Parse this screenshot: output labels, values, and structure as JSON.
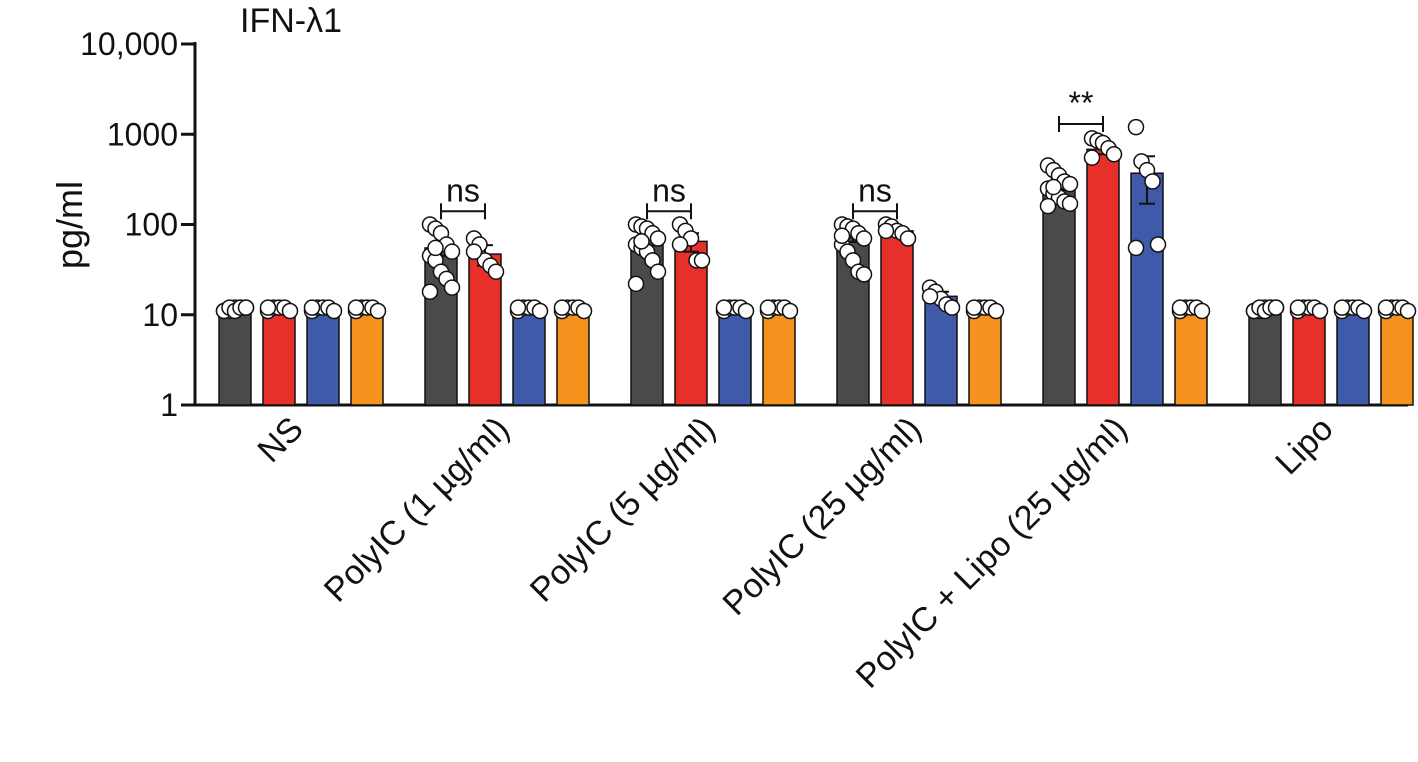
{
  "chart_data": {
    "type": "bar",
    "title": "IFN-λ1",
    "ylabel": "pg/ml",
    "xlabel": "",
    "yscale": "log",
    "ylim": [
      1,
      10000
    ],
    "yticks": [
      {
        "value": 1,
        "label": "1"
      },
      {
        "value": 10,
        "label": "10"
      },
      {
        "value": 100,
        "label": "100"
      },
      {
        "value": 1000,
        "label": "1000"
      },
      {
        "value": 10000,
        "label": "10,000"
      }
    ],
    "grid": false,
    "legend": "none",
    "categories": [
      "NS",
      "PolyIC (1 µg/ml)",
      "PolyIC (5 µg/ml)",
      "PolyIC (25 µg/ml)",
      "PolyIC + Lipo (25 µg/ml)",
      "Lipo"
    ],
    "series": [
      {
        "color": "#4a4a4a",
        "values": [
          12,
          55,
          68,
          72,
          280,
          12
        ],
        "error": [
          0,
          10,
          10,
          8,
          40,
          0
        ],
        "points": [
          [
            11,
            11,
            12,
            12,
            12,
            11,
            12,
            11,
            12,
            12
          ],
          [
            100,
            90,
            80,
            60,
            50,
            45,
            40,
            30,
            25,
            20,
            18,
            55
          ],
          [
            100,
            95,
            90,
            80,
            70,
            60,
            55,
            50,
            40,
            30,
            22,
            65
          ],
          [
            100,
            95,
            90,
            80,
            70,
            60,
            50,
            40,
            30,
            28,
            75
          ],
          [
            450,
            400,
            350,
            300,
            280,
            250,
            220,
            200,
            180,
            170,
            160,
            260
          ],
          [
            11,
            11,
            12,
            12,
            12,
            11,
            12,
            11,
            12,
            12
          ]
        ]
      },
      {
        "color": "#e8302a",
        "values": [
          12,
          47,
          65,
          85,
          680,
          12
        ],
        "error": [
          0,
          12,
          15,
          10,
          80,
          0
        ],
        "points": [
          [
            11,
            12,
            12,
            12,
            11,
            12
          ],
          [
            70,
            60,
            40,
            35,
            30,
            50
          ],
          [
            100,
            85,
            70,
            40,
            40,
            60
          ],
          [
            100,
            95,
            85,
            80,
            70,
            85
          ],
          [
            900,
            850,
            800,
            700,
            600,
            550
          ],
          [
            11,
            12,
            12,
            12,
            11,
            12
          ]
        ]
      },
      {
        "color": "#3f5aa8",
        "values": [
          12,
          12,
          12,
          16,
          370,
          12
        ],
        "error": [
          0,
          0,
          0,
          2,
          200,
          0
        ],
        "points": [
          [
            11,
            12,
            12,
            12,
            11,
            12
          ],
          [
            11,
            12,
            12,
            12,
            11,
            12
          ],
          [
            11,
            12,
            12,
            12,
            11,
            12
          ],
          [
            20,
            18,
            15,
            13,
            12,
            16
          ],
          [
            1200,
            500,
            400,
            300,
            60,
            55
          ],
          [
            11,
            12,
            12,
            12,
            11,
            12
          ]
        ]
      },
      {
        "color": "#f5921e",
        "values": [
          12,
          12,
          12,
          12,
          12,
          12
        ],
        "error": [
          0,
          0,
          0,
          0,
          0,
          0
        ],
        "points": [
          [
            11,
            12,
            12,
            12,
            11,
            12
          ],
          [
            11,
            12,
            12,
            12,
            11,
            12
          ],
          [
            11,
            12,
            12,
            12,
            11,
            12
          ],
          [
            11,
            12,
            12,
            12,
            11,
            12
          ],
          [
            11,
            12,
            12,
            12,
            11,
            12
          ],
          [
            11,
            12,
            12,
            12,
            11,
            12
          ]
        ]
      }
    ],
    "annotations": [
      {
        "text": "ns",
        "category": 1,
        "from_series": 0,
        "to_series": 1,
        "at": 140
      },
      {
        "text": "ns",
        "category": 2,
        "from_series": 0,
        "to_series": 1,
        "at": 140
      },
      {
        "text": "ns",
        "category": 3,
        "from_series": 0,
        "to_series": 1,
        "at": 140
      },
      {
        "text": "**",
        "category": 4,
        "from_series": 0,
        "to_series": 1,
        "at": 1300
      }
    ]
  }
}
